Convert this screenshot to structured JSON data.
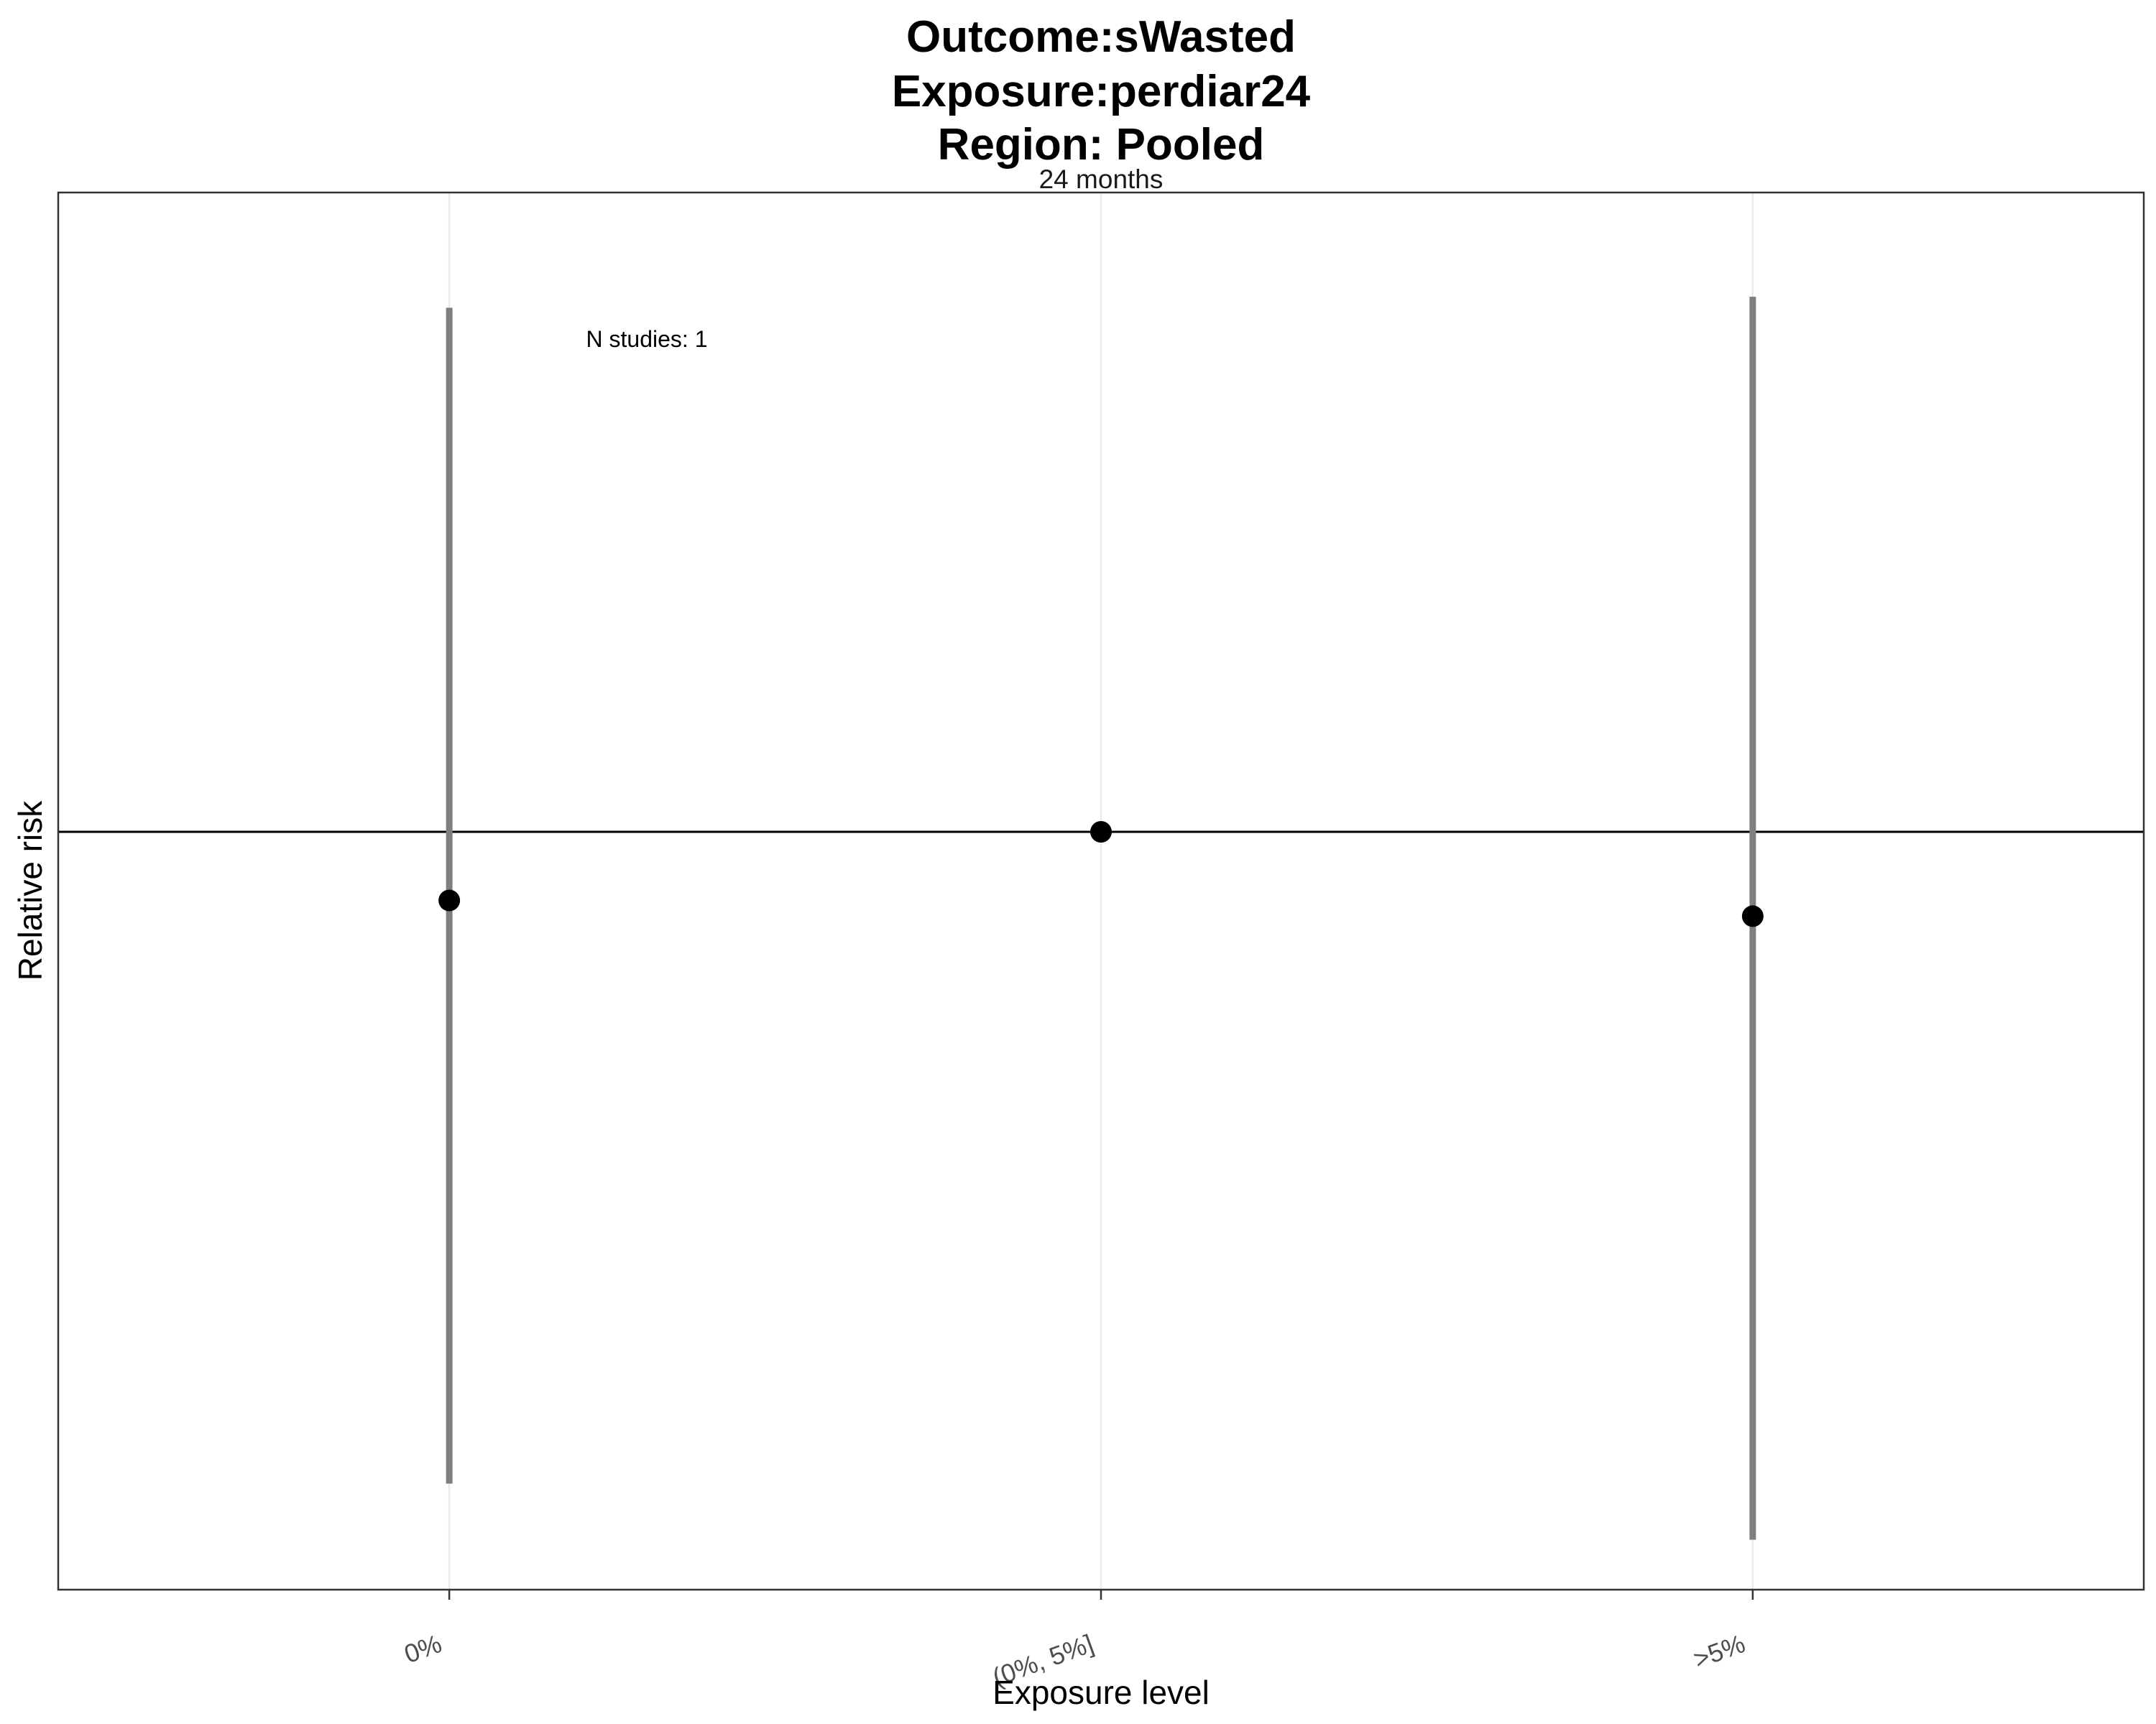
{
  "chart_data": {
    "type": "scatter",
    "title": [
      "Outcome:sWasted",
      "Exposure:perdiar24",
      "Region: Pooled"
    ],
    "strip_label": "24 months",
    "xlabel": "Exposure level",
    "ylabel": "Relative risk",
    "categories": [
      "0%",
      "(0%, 5%]",
      ">5%"
    ],
    "points": [
      {
        "category": "0%",
        "estimate": 0.8,
        "ci_lower": 0.12,
        "ci_upper": 5.5
      },
      {
        "category": "(0%, 5%]",
        "estimate": 1.0,
        "ci_lower": null,
        "ci_upper": null
      },
      {
        "category": ">5%",
        "estimate": 0.76,
        "ci_lower": 0.1,
        "ci_upper": 5.7
      }
    ],
    "reference_line": 1,
    "annotation": "N studies: 1",
    "y_scale": "log",
    "ylim": [
      0.085,
      8.0
    ],
    "y_tick_labels_shown": false,
    "grid": "vertical major",
    "legend": "none",
    "colors": {
      "point": "#000000",
      "errorbar": "#7f7f7f",
      "reference_line": "#000000",
      "grid": "#ebebeb",
      "panel_border": "#333333"
    }
  }
}
